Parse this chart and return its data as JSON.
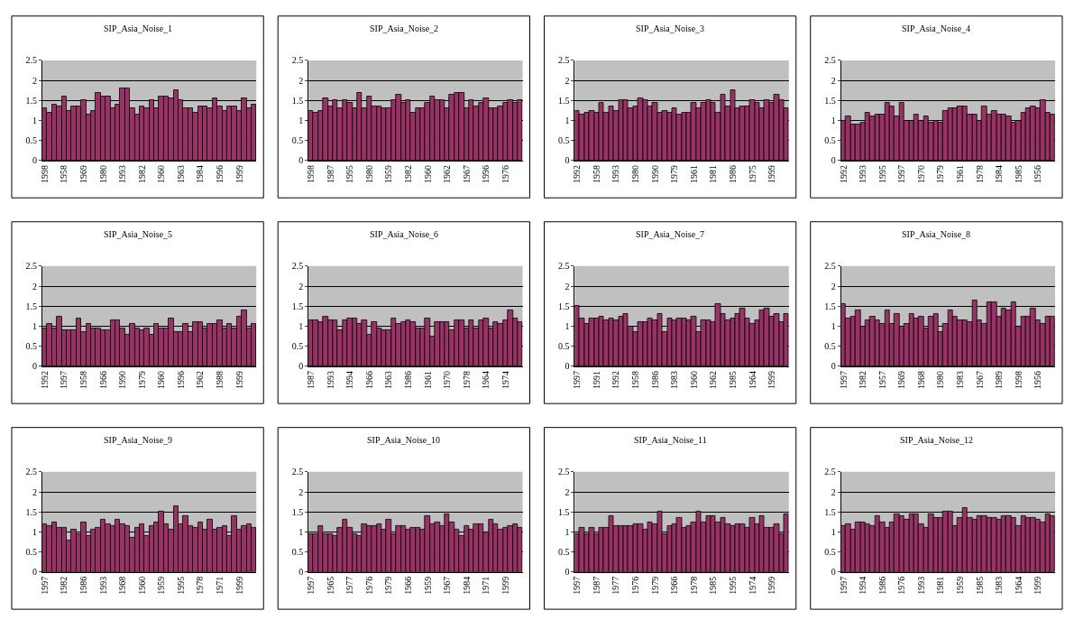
{
  "chart_data": [
    {
      "type": "bar",
      "title": "SIP_Asia_Noise_1",
      "categories": [
        "1998",
        null,
        null,
        null,
        "1958",
        null,
        null,
        null,
        "1969",
        null,
        null,
        null,
        "1980",
        null,
        null,
        null,
        "1993",
        null,
        null,
        null,
        "1982",
        null,
        null,
        null,
        "1960",
        null,
        null,
        null,
        "1963",
        null,
        null,
        null,
        "1984",
        null,
        null,
        null,
        "1996",
        null,
        null,
        null,
        "1999",
        null,
        null,
        null
      ],
      "values": [
        1.3,
        1.2,
        1.4,
        1.35,
        1.6,
        1.25,
        1.35,
        1.35,
        1.5,
        1.15,
        1.25,
        1.7,
        1.6,
        1.6,
        1.3,
        1.4,
        1.8,
        1.8,
        1.3,
        1.15,
        1.35,
        1.3,
        1.5,
        1.3,
        1.6,
        1.6,
        1.55,
        1.75,
        1.5,
        1.3,
        1.3,
        1.2,
        1.35,
        1.35,
        1.3,
        1.55,
        1.35,
        1.25,
        1.35,
        1.35,
        1.25,
        1.55,
        1.3,
        1.4
      ],
      "color": "#993366",
      "ylim": [
        0,
        2.5
      ],
      "yticks": [
        0,
        0.5,
        1,
        1.5,
        2,
        2.5
      ],
      "grid": "y"
    },
    {
      "type": "bar",
      "title": "SIP_Asia_Noise_2",
      "categories": [
        "1998",
        null,
        null,
        null,
        "1987",
        null,
        null,
        null,
        "1995",
        null,
        null,
        null,
        "1980",
        null,
        null,
        null,
        "1959",
        null,
        null,
        null,
        "1982",
        null,
        null,
        null,
        "1960",
        null,
        null,
        null,
        "1962",
        null,
        null,
        null,
        "1967",
        null,
        null,
        null,
        "1996",
        null,
        null,
        null,
        "1976",
        null,
        null,
        null
      ],
      "values": [
        1.25,
        1.2,
        1.25,
        1.55,
        1.35,
        1.5,
        1.3,
        1.5,
        1.45,
        1.3,
        1.7,
        1.3,
        1.6,
        1.35,
        1.35,
        1.3,
        1.3,
        1.5,
        1.65,
        1.45,
        1.5,
        1.2,
        1.3,
        1.3,
        1.45,
        1.6,
        1.5,
        1.5,
        1.3,
        1.65,
        1.7,
        1.7,
        1.3,
        1.5,
        1.35,
        1.45,
        1.55,
        1.3,
        1.3,
        1.35,
        1.45,
        1.5,
        1.45,
        1.5
      ],
      "color": "#993366",
      "ylim": [
        0,
        2.5
      ],
      "yticks": [
        0,
        0.5,
        1,
        1.5,
        2,
        2.5
      ],
      "grid": "y"
    },
    {
      "type": "bar",
      "title": "SIP_Asia_Noise_3",
      "categories": [
        "1992",
        null,
        null,
        null,
        "1958",
        null,
        null,
        null,
        "1993",
        null,
        null,
        null,
        "1980",
        null,
        null,
        null,
        "1990",
        null,
        null,
        null,
        "1979",
        null,
        null,
        null,
        "1961",
        null,
        null,
        null,
        "1981",
        null,
        null,
        null,
        "1986",
        null,
        null,
        null,
        "1975",
        null,
        null,
        null,
        "1999",
        null,
        null,
        null
      ],
      "values": [
        1.25,
        1.15,
        1.2,
        1.25,
        1.2,
        1.45,
        1.2,
        1.35,
        1.25,
        1.5,
        1.5,
        1.3,
        1.35,
        1.55,
        1.5,
        1.35,
        1.45,
        1.2,
        1.25,
        1.2,
        1.3,
        1.15,
        1.2,
        1.2,
        1.45,
        1.3,
        1.45,
        1.5,
        1.45,
        1.2,
        1.65,
        1.35,
        1.75,
        1.3,
        1.35,
        1.35,
        1.5,
        1.45,
        1.3,
        1.5,
        1.45,
        1.65,
        1.5,
        1.3
      ],
      "color": "#993366",
      "ylim": [
        0,
        2.5
      ],
      "yticks": [
        0,
        0.5,
        1,
        1.5,
        2,
        2.5
      ],
      "grid": "y"
    },
    {
      "type": "bar",
      "title": "SIP_Asia_Noise_4",
      "categories": [
        "1992",
        null,
        null,
        null,
        "1993",
        null,
        null,
        null,
        "1995",
        null,
        null,
        null,
        "1997",
        null,
        null,
        null,
        "1970",
        null,
        null,
        null,
        "1979",
        null,
        null,
        null,
        "1961",
        null,
        null,
        null,
        "1978",
        null,
        null,
        null,
        "1984",
        null,
        null,
        null,
        "1985",
        null,
        null,
        null,
        "1956",
        null,
        null,
        null
      ],
      "values": [
        1.0,
        1.1,
        0.9,
        0.9,
        0.95,
        1.2,
        1.1,
        1.15,
        1.15,
        1.45,
        1.35,
        1.1,
        1.45,
        1.0,
        1.0,
        1.15,
        1.0,
        1.1,
        0.95,
        1.0,
        0.95,
        1.25,
        1.3,
        1.3,
        1.35,
        1.35,
        1.15,
        1.15,
        1.0,
        1.35,
        1.15,
        1.25,
        1.15,
        1.15,
        1.1,
        0.95,
        1.0,
        1.2,
        1.3,
        1.35,
        1.3,
        1.5,
        1.2,
        1.15
      ],
      "color": "#993366",
      "ylim": [
        0,
        2.5
      ],
      "yticks": [
        0,
        0.5,
        1,
        1.5,
        2,
        2.5
      ],
      "grid": "y"
    },
    {
      "type": "bar",
      "title": "SIP_Asia_Noise_5",
      "categories": [
        "1992",
        null,
        null,
        null,
        "1997",
        null,
        null,
        null,
        "1958",
        null,
        null,
        null,
        "1966",
        null,
        null,
        null,
        "1990",
        null,
        null,
        null,
        "1979",
        null,
        null,
        null,
        "1960",
        null,
        null,
        null,
        "1996",
        null,
        null,
        null,
        "1962",
        null,
        null,
        null,
        "1988",
        null,
        null,
        null,
        "1999",
        null,
        null,
        null
      ],
      "values": [
        0.95,
        1.05,
        0.95,
        1.25,
        0.9,
        0.9,
        0.9,
        1.2,
        0.85,
        1.05,
        0.95,
        0.95,
        0.9,
        0.9,
        1.15,
        1.15,
        0.95,
        0.8,
        1.05,
        0.95,
        0.9,
        0.95,
        0.8,
        1.05,
        0.95,
        0.95,
        1.2,
        0.85,
        0.85,
        1.05,
        0.85,
        1.1,
        1.1,
        0.95,
        1.05,
        1.05,
        1.15,
        0.95,
        1.05,
        0.95,
        1.25,
        1.4,
        0.95,
        1.05
      ],
      "color": "#993366",
      "ylim": [
        0,
        2.5
      ],
      "yticks": [
        0,
        0.5,
        1,
        1.5,
        2,
        2.5
      ],
      "grid": "y"
    },
    {
      "type": "bar",
      "title": "SIP_Asia_Noise_6",
      "categories": [
        "1987",
        null,
        null,
        null,
        "1993",
        null,
        null,
        null,
        "1994",
        null,
        null,
        null,
        "1966",
        null,
        null,
        null,
        "1963",
        null,
        null,
        null,
        "1986",
        null,
        null,
        null,
        "1961",
        null,
        null,
        null,
        "1970",
        null,
        null,
        null,
        "1978",
        null,
        null,
        null,
        "1964",
        null,
        null,
        null,
        "1974",
        null,
        null,
        null
      ],
      "values": [
        1.15,
        1.15,
        1.1,
        1.25,
        1.15,
        1.15,
        0.9,
        1.15,
        1.2,
        1.2,
        1.05,
        1.15,
        0.8,
        1.1,
        0.95,
        0.9,
        0.9,
        1.2,
        1.05,
        1.1,
        1.15,
        1.1,
        0.95,
        0.95,
        1.2,
        0.75,
        1.1,
        1.1,
        1.1,
        0.9,
        1.15,
        1.15,
        0.95,
        1.15,
        0.95,
        1.15,
        1.2,
        0.95,
        1.1,
        1.05,
        1.15,
        1.4,
        1.2,
        1.1
      ],
      "color": "#993366",
      "ylim": [
        0,
        2.5
      ],
      "yticks": [
        0,
        0.5,
        1,
        1.5,
        2,
        2.5
      ],
      "grid": "y"
    },
    {
      "type": "bar",
      "title": "SIP_Asia_Noise_7",
      "categories": [
        "1997",
        null,
        null,
        null,
        "1991",
        null,
        null,
        null,
        "1992",
        null,
        null,
        null,
        "1958",
        null,
        null,
        null,
        "1986",
        null,
        null,
        null,
        "1983",
        null,
        null,
        null,
        "1960",
        null,
        null,
        null,
        "1962",
        null,
        null,
        null,
        "1985",
        null,
        null,
        null,
        "1964",
        null,
        null,
        null,
        "1999",
        null,
        null,
        null
      ],
      "values": [
        1.5,
        1.2,
        1.05,
        1.2,
        1.2,
        1.25,
        1.15,
        1.2,
        1.15,
        1.25,
        1.3,
        1.0,
        0.85,
        1.1,
        1.1,
        1.2,
        1.15,
        1.3,
        0.85,
        1.2,
        1.15,
        1.2,
        1.2,
        1.15,
        1.25,
        0.85,
        1.15,
        1.15,
        1.1,
        1.55,
        1.3,
        1.15,
        1.2,
        1.3,
        1.45,
        1.2,
        1.05,
        1.15,
        1.4,
        1.45,
        1.25,
        1.3,
        1.1,
        1.3
      ],
      "color": "#993366",
      "ylim": [
        0,
        2.5
      ],
      "yticks": [
        0,
        0.5,
        1,
        1.5,
        2,
        2.5
      ],
      "grid": "y"
    },
    {
      "type": "bar",
      "title": "SIP_Asia_Noise_8",
      "categories": [
        "1997",
        null,
        null,
        null,
        "1982",
        null,
        null,
        null,
        "1957",
        null,
        null,
        null,
        "1969",
        null,
        null,
        null,
        "1968",
        null,
        null,
        null,
        "1980",
        null,
        null,
        null,
        "1983",
        null,
        null,
        null,
        "1967",
        null,
        null,
        null,
        "1989",
        null,
        null,
        null,
        "1998",
        null,
        null,
        null,
        "1956",
        null,
        null,
        null
      ],
      "values": [
        1.55,
        1.2,
        1.25,
        1.4,
        1.0,
        1.15,
        1.25,
        1.15,
        1.05,
        1.4,
        1.05,
        1.3,
        1.0,
        1.05,
        1.3,
        1.2,
        1.25,
        0.95,
        1.25,
        1.3,
        0.85,
        1.05,
        1.4,
        1.25,
        1.15,
        1.15,
        1.1,
        1.65,
        1.15,
        1.05,
        1.6,
        1.6,
        1.25,
        1.45,
        1.4,
        1.6,
        1.0,
        1.25,
        1.25,
        1.45,
        1.15,
        1.05,
        1.25,
        1.25
      ],
      "color": "#993366",
      "ylim": [
        0,
        2.5
      ],
      "yticks": [
        0,
        0.5,
        1,
        1.5,
        2,
        2.5
      ],
      "grid": "y"
    },
    {
      "type": "bar",
      "title": "SIP_Asia_Noise_9",
      "categories": [
        "1997",
        null,
        null,
        null,
        "1982",
        null,
        null,
        null,
        "1986",
        null,
        null,
        null,
        "1993",
        null,
        null,
        null,
        "1968",
        null,
        null,
        null,
        "1960",
        null,
        null,
        null,
        "1959",
        null,
        null,
        null,
        "1995",
        null,
        null,
        null,
        "1978",
        null,
        null,
        null,
        "1971",
        null,
        null,
        null,
        "1999",
        null,
        null,
        null
      ],
      "values": [
        1.2,
        1.15,
        1.25,
        1.1,
        1.1,
        0.8,
        1.05,
        0.95,
        1.25,
        0.9,
        1.05,
        1.1,
        1.3,
        1.2,
        1.15,
        1.3,
        1.2,
        1.15,
        0.85,
        1.1,
        1.2,
        0.9,
        1.15,
        1.25,
        1.5,
        1.2,
        1.05,
        1.65,
        1.2,
        1.4,
        1.15,
        1.1,
        1.25,
        1.05,
        1.3,
        1.05,
        1.1,
        1.15,
        0.9,
        1.4,
        1.05,
        1.15,
        1.2,
        1.1
      ],
      "color": "#993366",
      "ylim": [
        0,
        2.5
      ],
      "yticks": [
        0,
        0.5,
        1,
        1.5,
        2,
        2.5
      ],
      "grid": "y"
    },
    {
      "type": "bar",
      "title": "SIP_Asia_Noise_10",
      "categories": [
        "1997",
        null,
        null,
        null,
        "1965",
        null,
        null,
        null,
        "1977",
        null,
        null,
        null,
        "1976",
        null,
        null,
        null,
        "1979",
        null,
        null,
        null,
        "1966",
        null,
        null,
        null,
        "1959",
        null,
        null,
        null,
        "1967",
        null,
        null,
        null,
        "1984",
        null,
        null,
        null,
        "1971",
        null,
        null,
        null,
        "1999",
        null,
        null,
        null
      ],
      "values": [
        0.95,
        0.95,
        1.15,
        0.95,
        0.95,
        0.9,
        1.1,
        1.3,
        1.1,
        0.95,
        0.9,
        1.2,
        1.15,
        1.15,
        1.2,
        1.05,
        1.3,
        0.95,
        1.15,
        1.15,
        1.05,
        1.1,
        1.1,
        1.05,
        1.4,
        1.2,
        1.25,
        1.15,
        1.45,
        1.25,
        1.05,
        0.9,
        1.15,
        1.05,
        1.2,
        1.2,
        1.0,
        1.3,
        1.2,
        1.05,
        1.1,
        1.15,
        1.2,
        1.1
      ],
      "color": "#993366",
      "ylim": [
        0,
        2.5
      ],
      "yticks": [
        0,
        0.5,
        1,
        1.5,
        2,
        2.5
      ],
      "grid": "y"
    },
    {
      "type": "bar",
      "title": "SIP_Asia_Noise_11",
      "categories": [
        "1997",
        null,
        null,
        null,
        "1987",
        null,
        null,
        null,
        "1977",
        null,
        null,
        null,
        "1976",
        null,
        null,
        null,
        "1979",
        null,
        null,
        null,
        "1966",
        null,
        null,
        null,
        "1978",
        null,
        null,
        null,
        "1985",
        null,
        null,
        null,
        "1995",
        null,
        null,
        null,
        "1974",
        null,
        null,
        null,
        "1999",
        null,
        null,
        null
      ],
      "values": [
        0.95,
        1.1,
        0.95,
        1.1,
        0.95,
        1.1,
        1.1,
        1.4,
        1.15,
        1.15,
        1.15,
        1.15,
        1.2,
        1.2,
        1.05,
        1.25,
        1.2,
        1.5,
        0.95,
        1.15,
        1.2,
        1.35,
        1.1,
        1.15,
        1.25,
        1.5,
        1.25,
        1.4,
        1.4,
        1.25,
        1.35,
        1.2,
        1.15,
        1.2,
        1.2,
        1.1,
        1.35,
        1.2,
        1.4,
        1.1,
        1.1,
        1.2,
        0.95,
        1.45
      ],
      "color": "#993366",
      "ylim": [
        0,
        2.5
      ],
      "yticks": [
        0,
        0.5,
        1,
        1.5,
        2,
        2.5
      ],
      "grid": "y"
    },
    {
      "type": "bar",
      "title": "SIP_Asia_Noise_12",
      "categories": [
        "1997",
        null,
        null,
        null,
        "1994",
        null,
        null,
        null,
        "1986",
        null,
        null,
        null,
        "1976",
        null,
        null,
        null,
        "1993",
        null,
        null,
        null,
        "1981",
        null,
        null,
        null,
        "1959",
        null,
        null,
        null,
        "1985",
        null,
        null,
        null,
        "1983",
        null,
        null,
        null,
        "1964",
        null,
        null,
        null,
        "1999",
        null,
        null,
        null
      ],
      "values": [
        1.15,
        1.2,
        1.05,
        1.25,
        1.25,
        1.2,
        1.15,
        1.4,
        1.25,
        1.1,
        1.25,
        1.45,
        1.4,
        1.3,
        1.45,
        1.45,
        1.2,
        1.1,
        1.45,
        1.35,
        1.35,
        1.5,
        1.5,
        1.15,
        1.35,
        1.6,
        1.35,
        1.3,
        1.4,
        1.4,
        1.35,
        1.35,
        1.3,
        1.4,
        1.4,
        1.35,
        1.15,
        1.4,
        1.35,
        1.35,
        1.3,
        1.25,
        1.45,
        1.4
      ],
      "color": "#993366",
      "ylim": [
        0,
        2.5
      ],
      "yticks": [
        0,
        0.5,
        1,
        1.5,
        2,
        2.5
      ],
      "grid": "y"
    }
  ]
}
